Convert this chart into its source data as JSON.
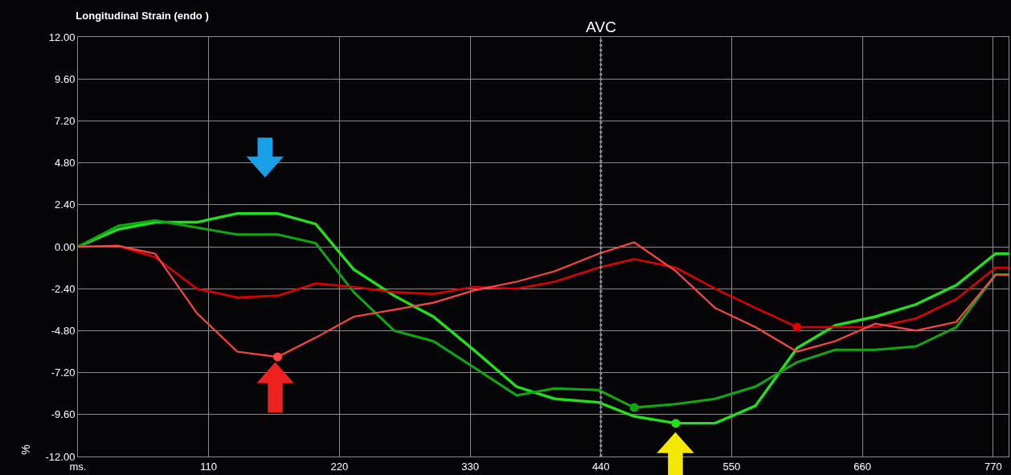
{
  "chart_data": {
    "type": "line",
    "title": "Longitudinal Strain (endo )",
    "ylabel": "%",
    "x": [
      0,
      34,
      65,
      100,
      134,
      168,
      200,
      232,
      266,
      299,
      333,
      369,
      401,
      438,
      468,
      503,
      536,
      570,
      605,
      637,
      671,
      705,
      739,
      772,
      783
    ],
    "series": [
      {
        "color": "#22e01c",
        "values": [
          0,
          1.0,
          1.4,
          1.4,
          1.9,
          1.9,
          1.3,
          -1.3,
          -2.8,
          -4.0,
          -5.9,
          -8.0,
          -8.7,
          -8.9,
          -9.7,
          -10.1,
          -10.1,
          -9.1,
          -5.8,
          -4.5,
          -4.0,
          -3.3,
          -2.2,
          -0.4,
          -0.4
        ]
      },
      {
        "color": "#10a810",
        "values": [
          0,
          1.2,
          1.5,
          1.1,
          0.7,
          0.7,
          0.2,
          -2.6,
          -4.8,
          -5.4,
          -6.9,
          -8.5,
          -8.1,
          -8.2,
          -9.2,
          -9.0,
          -8.7,
          -8.0,
          -6.6,
          -5.9,
          -5.9,
          -5.7,
          -4.6,
          -1.6,
          -1.6
        ]
      },
      {
        "color": "#dd0000",
        "values": [
          0,
          0.05,
          -0.6,
          -2.4,
          -2.9,
          -2.8,
          -2.1,
          -2.3,
          -2.6,
          -2.7,
          -2.3,
          -2.4,
          -2.0,
          -1.2,
          -0.7,
          -1.2,
          -2.4,
          -3.5,
          -4.6,
          -4.6,
          -4.6,
          -4.1,
          -3.0,
          -1.2,
          -1.2
        ]
      },
      {
        "color": "#ff4444",
        "values": [
          0,
          0.05,
          -0.4,
          -3.8,
          -6.0,
          -6.3,
          -5.2,
          -4.0,
          -3.6,
          -3.2,
          -2.5,
          -2.0,
          -1.4,
          -0.4,
          0.25,
          -1.4,
          -3.5,
          -4.6,
          -6.0,
          -5.4,
          -4.4,
          -4.8,
          -4.3,
          -1.6,
          -1.6
        ]
      },
      {
        "type": "scatter",
        "marker": "circle",
        "color": "#22e01c",
        "x": [
          503
        ],
        "values": [
          -10.1
        ]
      },
      {
        "type": "scatter",
        "marker": "circle",
        "color": "#10a810",
        "x": [
          468
        ],
        "values": [
          -9.2
        ]
      },
      {
        "type": "scatter",
        "marker": "circle",
        "color": "#dd0000",
        "x": [
          605
        ],
        "values": [
          -4.6
        ]
      },
      {
        "type": "scatter",
        "marker": "circle",
        "color": "#ff4444",
        "x": [
          168
        ],
        "values": [
          -6.3
        ]
      }
    ],
    "xlim": [
      0,
      783
    ],
    "xticks": [
      {
        "value": 0,
        "label": "ms."
      },
      110,
      220,
      330,
      440,
      550,
      660,
      770
    ],
    "ylim": [
      -12,
      12
    ],
    "yticks": [
      {
        "value": -12,
        "label": "-12.00"
      },
      {
        "value": -9.6,
        "label": "-9.60"
      },
      {
        "value": -7.2,
        "label": "-7.20"
      },
      {
        "value": -4.8,
        "label": "-4.80"
      },
      {
        "value": -2.4,
        "label": "-2.40"
      },
      {
        "value": 0,
        "label": "0.00"
      },
      {
        "value": 2.4,
        "label": "2.40"
      },
      {
        "value": 4.8,
        "label": "4.80"
      },
      {
        "value": 7.2,
        "label": "7.20"
      },
      {
        "value": 9.6,
        "label": "9.60"
      },
      {
        "value": 12,
        "label": "12.00"
      }
    ],
    "ref_lines": [
      {
        "axis": "x",
        "value": 440,
        "label": "AVC",
        "color": "#8888aa",
        "line_style": "dotted"
      }
    ],
    "grid": true
  }
}
